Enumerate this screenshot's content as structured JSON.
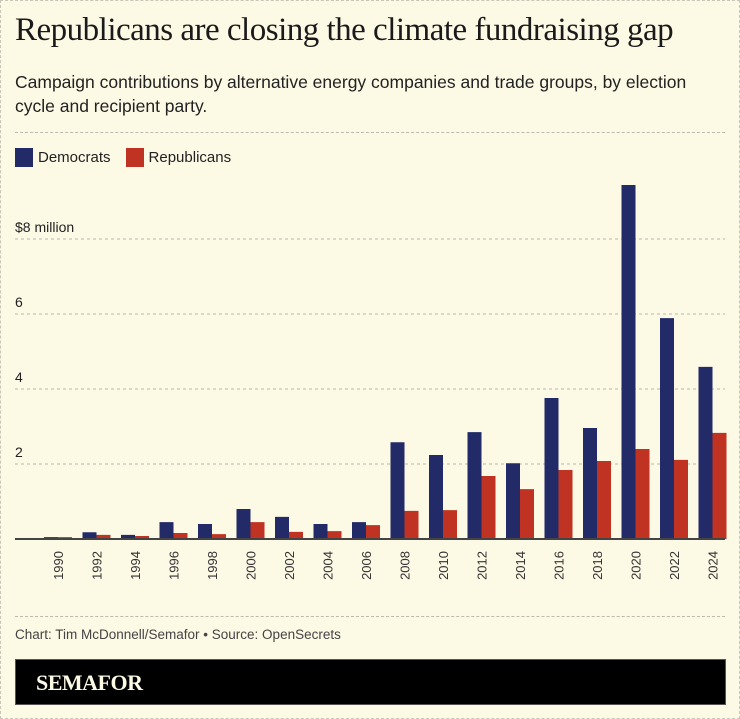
{
  "title": "Republicans are closing the climate fundraising gap",
  "subtitle": "Campaign contributions by alternative energy companies and trade groups, by election cycle and recipient party.",
  "credit": "Chart: Tim McDonnell/Semafor • Source: OpenSecrets",
  "logo": "SEMAFOR",
  "colors": {
    "democrats": "#222a68",
    "republicans": "#c03322",
    "background": "#fcf9e5"
  },
  "chart_data": {
    "type": "bar",
    "title": "Republicans are closing the climate fundraising gap",
    "xlabel": "",
    "ylabel": "",
    "ylim": [
      0,
      10
    ],
    "grid": true,
    "legend": "top-left",
    "yticks": [
      {
        "value": 2,
        "label": "2"
      },
      {
        "value": 4,
        "label": "4"
      },
      {
        "value": 6,
        "label": "6"
      },
      {
        "value": 8,
        "label": "$8 million"
      }
    ],
    "categories": [
      "1990",
      "1992",
      "1994",
      "1996",
      "1998",
      "2000",
      "2002",
      "2004",
      "2006",
      "2008",
      "2010",
      "2012",
      "2014",
      "2016",
      "2018",
      "2020",
      "2022",
      "2024"
    ],
    "series": [
      {
        "name": "Democrats",
        "color": "#222a68",
        "values": [
          0.05,
          0.18,
          0.11,
          0.45,
          0.4,
          0.8,
          0.59,
          0.4,
          0.45,
          2.58,
          2.24,
          2.85,
          2.02,
          3.76,
          2.96,
          9.44,
          5.89,
          4.59
        ]
      },
      {
        "name": "Republicans",
        "color": "#c03322",
        "values": [
          0.05,
          0.11,
          0.08,
          0.16,
          0.13,
          0.45,
          0.19,
          0.21,
          0.37,
          0.75,
          0.77,
          1.68,
          1.33,
          1.84,
          2.08,
          2.4,
          2.11,
          2.83
        ]
      }
    ]
  }
}
